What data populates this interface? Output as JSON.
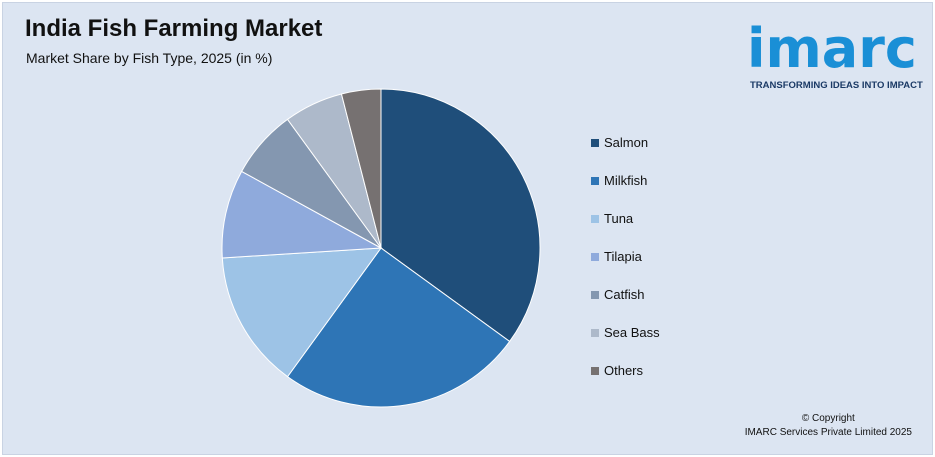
{
  "header": {
    "title": "India Fish Farming Market",
    "subtitle": "Market Share by Fish Type, 2025 (in %)"
  },
  "logo": {
    "wordmark": "imarc",
    "tagline": "TRANSFORMING IDEAS INTO IMPACT",
    "color": "#1a8fd6"
  },
  "footer": {
    "copyright_line1": "© Copyright",
    "copyright_line2": "IMARC Services Private Limited 2025"
  },
  "chart_data": {
    "type": "pie",
    "categories": [
      "Salmon",
      "Milkfish",
      "Tuna",
      "Tilapia",
      "Catfish",
      "Sea Bass",
      "Others"
    ],
    "values": [
      35,
      25,
      14,
      9,
      7,
      6,
      4
    ],
    "colors": [
      "#1f4e7a",
      "#2e75b6",
      "#9dc3e6",
      "#8faadc",
      "#8497b0",
      "#adb9ca",
      "#767171"
    ],
    "start_angle_deg": 0,
    "direction": "clockwise",
    "legend_position": "right"
  }
}
